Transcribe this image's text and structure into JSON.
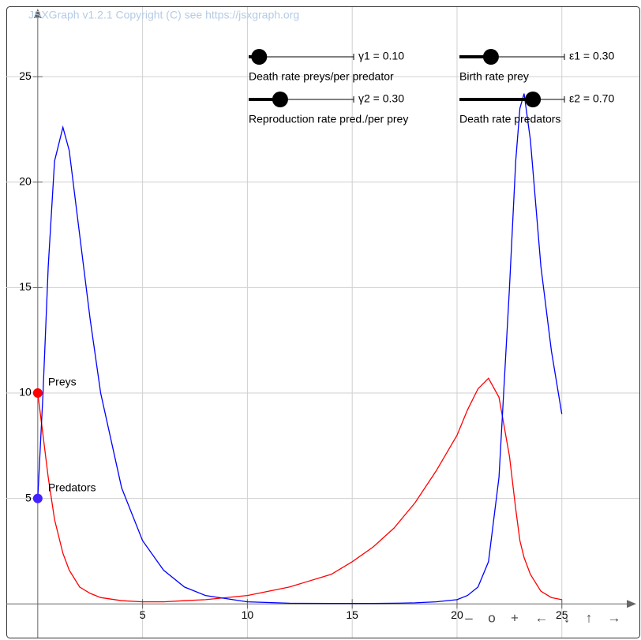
{
  "copyright": "JSXGraph v1.2.1 Copyright (C) see https://jsxgraph.org",
  "sliders": [
    {
      "label": "γ1 = 0.10",
      "value": 0.1,
      "range": [
        0,
        1
      ],
      "description": "Death rate preys/per predator"
    },
    {
      "label": "γ2 = 0.30",
      "value": 0.3,
      "range": [
        0,
        1
      ],
      "description": "Reproduction rate pred./per prey"
    },
    {
      "label": "ε1 = 0.30",
      "value": 0.3,
      "range": [
        0,
        1
      ],
      "description": "Birth rate prey"
    },
    {
      "label": "ε2 = 0.70",
      "value": 0.7,
      "range": [
        0,
        1
      ],
      "description": "Death rate predators"
    }
  ],
  "navigation": [
    "–",
    "o",
    "+",
    "←",
    "↓",
    "↑",
    "→"
  ],
  "chart_data": {
    "type": "line",
    "x": [
      0,
      0.25,
      0.5,
      0.8,
      1.2,
      1.5,
      2,
      2.5,
      3,
      4,
      5,
      6,
      7,
      8,
      10,
      12,
      14,
      15,
      16,
      17,
      18,
      19,
      20,
      20.5,
      21,
      21.5,
      22,
      22.5,
      22.8,
      23,
      23.2,
      23.5,
      24,
      24.5,
      25
    ],
    "series": [
      {
        "name": "Preys",
        "color": "#ff0000",
        "values": [
          10,
          8,
          6,
          4,
          2.4,
          1.6,
          0.8,
          0.5,
          0.3,
          0.15,
          0.1,
          0.1,
          0.15,
          0.2,
          0.4,
          0.8,
          1.4,
          2.0,
          2.7,
          3.6,
          4.8,
          6.3,
          8.0,
          9.2,
          10.2,
          10.7,
          9.8,
          7,
          4.5,
          3,
          2.2,
          1.4,
          0.6,
          0.3,
          0.2
        ]
      },
      {
        "name": "Predators",
        "color": "#0000ff",
        "values": [
          5,
          10,
          16,
          21,
          22.6,
          21.5,
          17.5,
          13.5,
          10,
          5.5,
          3,
          1.6,
          0.8,
          0.4,
          0.1,
          0.03,
          0.02,
          0.02,
          0.02,
          0.03,
          0.05,
          0.1,
          0.2,
          0.4,
          0.8,
          2,
          6,
          15,
          21,
          23.5,
          24.2,
          22,
          16,
          12,
          9
        ]
      }
    ],
    "point_colors": [
      "#ff0000",
      "#4422ff"
    ],
    "xlim": [
      -1.5,
      28.7
    ],
    "ylim": [
      -1.6,
      28.3
    ],
    "xticks": [
      5,
      10,
      15,
      20,
      25
    ],
    "yticks": [
      5,
      10,
      15,
      20,
      25
    ],
    "grid": true
  }
}
